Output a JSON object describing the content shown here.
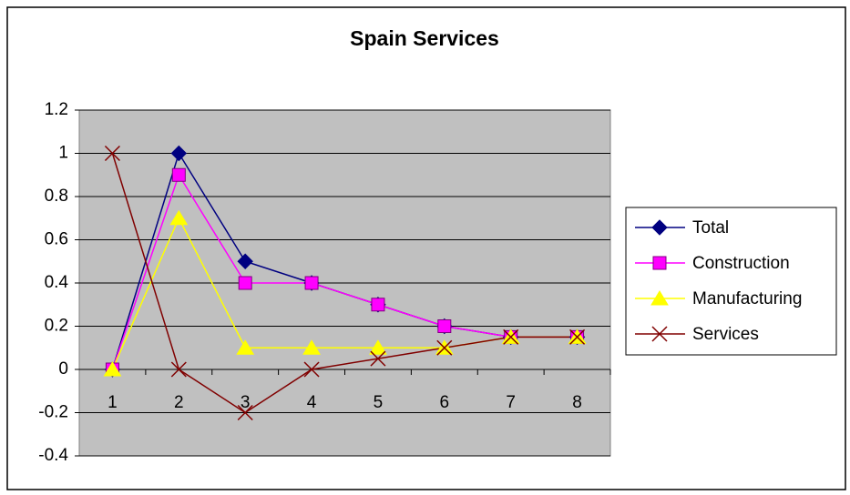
{
  "chart_data": {
    "type": "line",
    "title": "Spain Services",
    "categories": [
      "1",
      "2",
      "3",
      "4",
      "5",
      "6",
      "7",
      "8"
    ],
    "series": [
      {
        "name": "Total",
        "color": "#000080",
        "marker": "diamond",
        "values": [
          0,
          1,
          0.5,
          0.4,
          0.3,
          0.2,
          0.15,
          0.15
        ]
      },
      {
        "name": "Construction",
        "color": "#ff00ff",
        "marker": "square",
        "values": [
          0,
          0.9,
          0.4,
          0.4,
          0.3,
          0.2,
          0.15,
          0.15
        ]
      },
      {
        "name": "Manufacturing",
        "color": "#ffff00",
        "marker": "triangle",
        "values": [
          0,
          0.7,
          0.1,
          0.1,
          0.1,
          0.1,
          0.15,
          0.15
        ]
      },
      {
        "name": "Services",
        "color": "#800000",
        "marker": "x",
        "values": [
          1,
          0,
          -0.2,
          0,
          0.05,
          0.1,
          0.15,
          0.15
        ]
      }
    ],
    "ylim": [
      -0.4,
      1.2
    ],
    "yticks": [
      -0.4,
      -0.2,
      0,
      0.2,
      0.4,
      0.6,
      0.8,
      1,
      1.2
    ],
    "grid": true,
    "legend": "right"
  }
}
